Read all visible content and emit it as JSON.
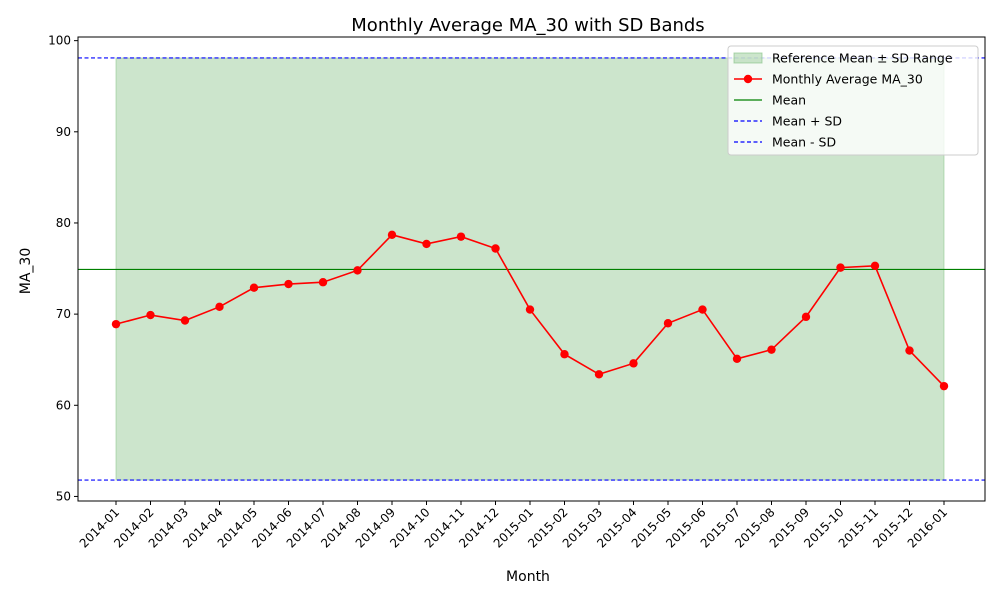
{
  "chart_data": {
    "type": "line",
    "title": "Monthly Average MA_30 with SD Bands",
    "xlabel": "Month",
    "ylabel": "MA_30",
    "categories": [
      "2014-01",
      "2014-02",
      "2014-03",
      "2014-04",
      "2014-05",
      "2014-06",
      "2014-07",
      "2014-08",
      "2014-09",
      "2014-10",
      "2014-11",
      "2014-12",
      "2015-01",
      "2015-02",
      "2015-03",
      "2015-04",
      "2015-05",
      "2015-06",
      "2015-07",
      "2015-08",
      "2015-09",
      "2015-10",
      "2015-11",
      "2015-12",
      "2016-01"
    ],
    "series": [
      {
        "name": "Monthly Average MA_30",
        "color": "#ff0000",
        "values": [
          68.9,
          69.9,
          69.3,
          70.8,
          72.9,
          73.3,
          73.5,
          74.8,
          78.7,
          77.7,
          78.5,
          77.2,
          70.5,
          65.6,
          63.4,
          64.6,
          69.0,
          70.5,
          65.1,
          66.1,
          69.7,
          75.1,
          75.3,
          66.0,
          62.1
        ]
      }
    ],
    "reference": {
      "mean": 74.9,
      "mean_plus_sd": 98.1,
      "mean_minus_sd": 51.8,
      "band_color": "#a3d0a3",
      "mean_color": "#008000",
      "sd_color": "#0000ff"
    },
    "ylim": [
      49.5,
      100.4
    ],
    "yticks": [
      50,
      60,
      70,
      80,
      90,
      100
    ],
    "grid": false,
    "legend": {
      "placement": "top-right",
      "entries": [
        {
          "label": "Reference Mean ± SD Range",
          "kind": "patch",
          "color": "#a3d0a3"
        },
        {
          "label": "Monthly Average MA_30",
          "kind": "line-marker",
          "color": "#ff0000"
        },
        {
          "label": "Mean",
          "kind": "line",
          "color": "#008000"
        },
        {
          "label": "Mean + SD",
          "kind": "dashed",
          "color": "#0000ff"
        },
        {
          "label": "Mean - SD",
          "kind": "dashed",
          "color": "#0000ff"
        }
      ]
    }
  }
}
